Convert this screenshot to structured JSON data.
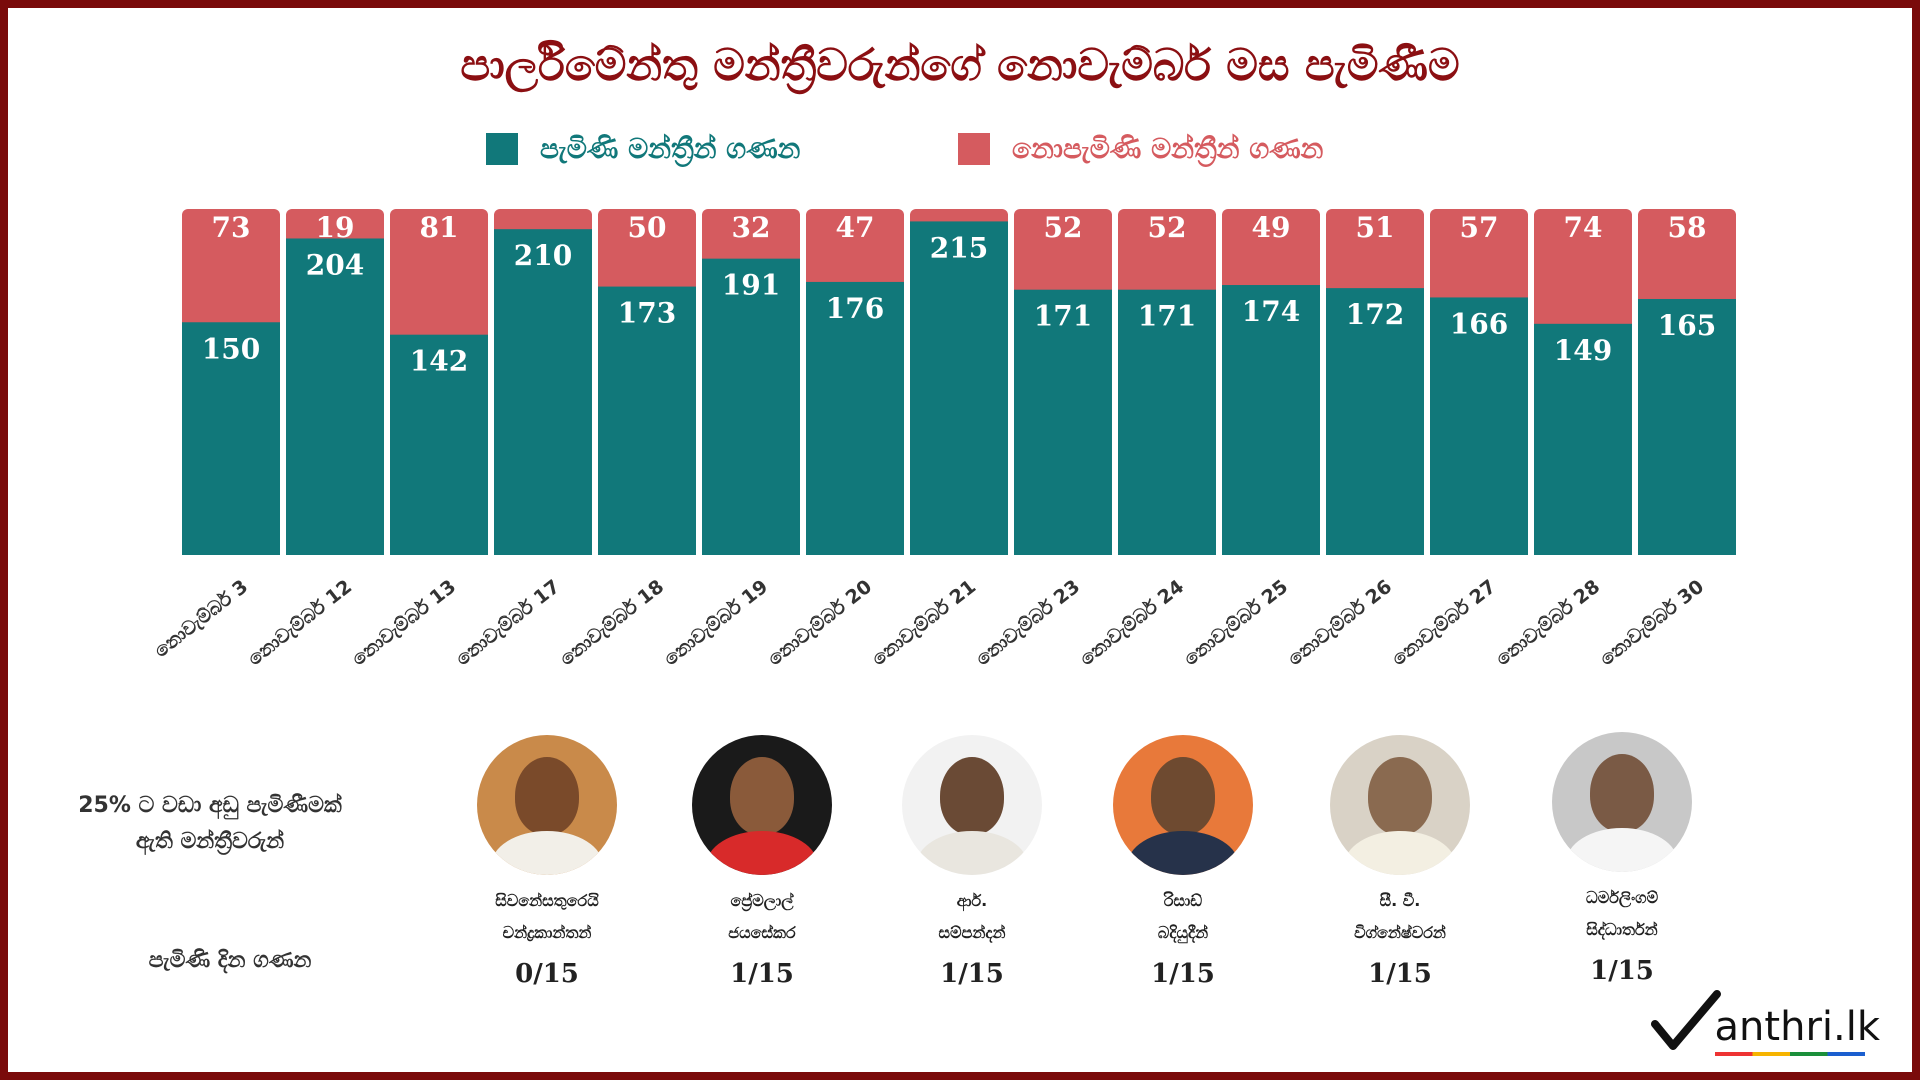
{
  "title": "පාර්ලිමේන්තු මන්ත්‍රීවරුන්ගේ නොවැම්බර් මස පැමිණීම",
  "legend": {
    "present_label": "පැමිණි මන්ත්‍රීන් ගණන",
    "absent_label": "නොපැමිණි මන්ත්‍රීන් ගණන"
  },
  "colors": {
    "present": "#11787a",
    "absent": "#d55b5f",
    "title": "#8b0f12",
    "frame": "#7a0a0a"
  },
  "chart_data": {
    "type": "bar",
    "stacked": true,
    "categories": [
      "නොවැම්බර් 3",
      "නොවැම්බර් 12",
      "නොවැම්බර් 13",
      "නොවැම්බර් 17",
      "නොවැම්බර් 18",
      "නොවැම්බර් 19",
      "නොවැම්බර් 20",
      "නොවැම්බර් 21",
      "නොවැම්බර් 23",
      "නොවැම්බර් 24",
      "නොවැම්බර් 25",
      "නොවැම්බර් 26",
      "නොවැම්බර් 27",
      "නොවැම්බර් 28",
      "නොවැම්බර් 30"
    ],
    "series": [
      {
        "name": "පැමිණි මන්ත්‍රීන් ගණන",
        "values": [
          150,
          204,
          142,
          210,
          173,
          191,
          176,
          215,
          171,
          171,
          174,
          172,
          166,
          149,
          165
        ]
      },
      {
        "name": "නොපැමිණි මන්ත්‍රීන් ගණන",
        "values": [
          73,
          19,
          81,
          13,
          50,
          32,
          47,
          8,
          52,
          52,
          49,
          51,
          57,
          74,
          58
        ]
      }
    ],
    "value_labels": {
      "present": [
        "150",
        "204",
        "142",
        "210",
        "173",
        "191",
        "176",
        "215",
        "171",
        "171",
        "174",
        "172",
        "166",
        "149",
        "165"
      ],
      "absent": [
        "73",
        "19",
        "81",
        "",
        "50",
        "32",
        "47",
        "",
        "52",
        "52",
        "49",
        "51",
        "57",
        "74",
        "58"
      ]
    },
    "legend_position": "top",
    "grid": false
  },
  "low_attendance": {
    "label": "25% ට වඩා අඩු පැමිණීමක් ඇති මන්ත්‍රීවරුන්",
    "days_label": "පැමිණි දින ගණන",
    "mps": [
      {
        "name_line1": "සිවනේසතුරෙයි",
        "name_line2": "චන්ද්‍රකාන්තන්",
        "days": "0/15"
      },
      {
        "name_line1": "ප්‍රේමලාල්",
        "name_line2": "ජයසේකර",
        "days": "1/15"
      },
      {
        "name_line1": "ආර්.",
        "name_line2": "සම්පන්දන්",
        "days": "1/15"
      },
      {
        "name_line1": "රිසාඩ්",
        "name_line2": "බදියුදීන්",
        "days": "1/15"
      },
      {
        "name_line1": "සී. වී.",
        "name_line2": "විග්නේෂ්වරන්",
        "days": "1/15"
      },
      {
        "name_line1": "ධර්මලිංගම්",
        "name_line2": "සිද්ධාර්තන්",
        "days": "1/15"
      }
    ]
  },
  "logo": {
    "text": "anthri.lk"
  }
}
